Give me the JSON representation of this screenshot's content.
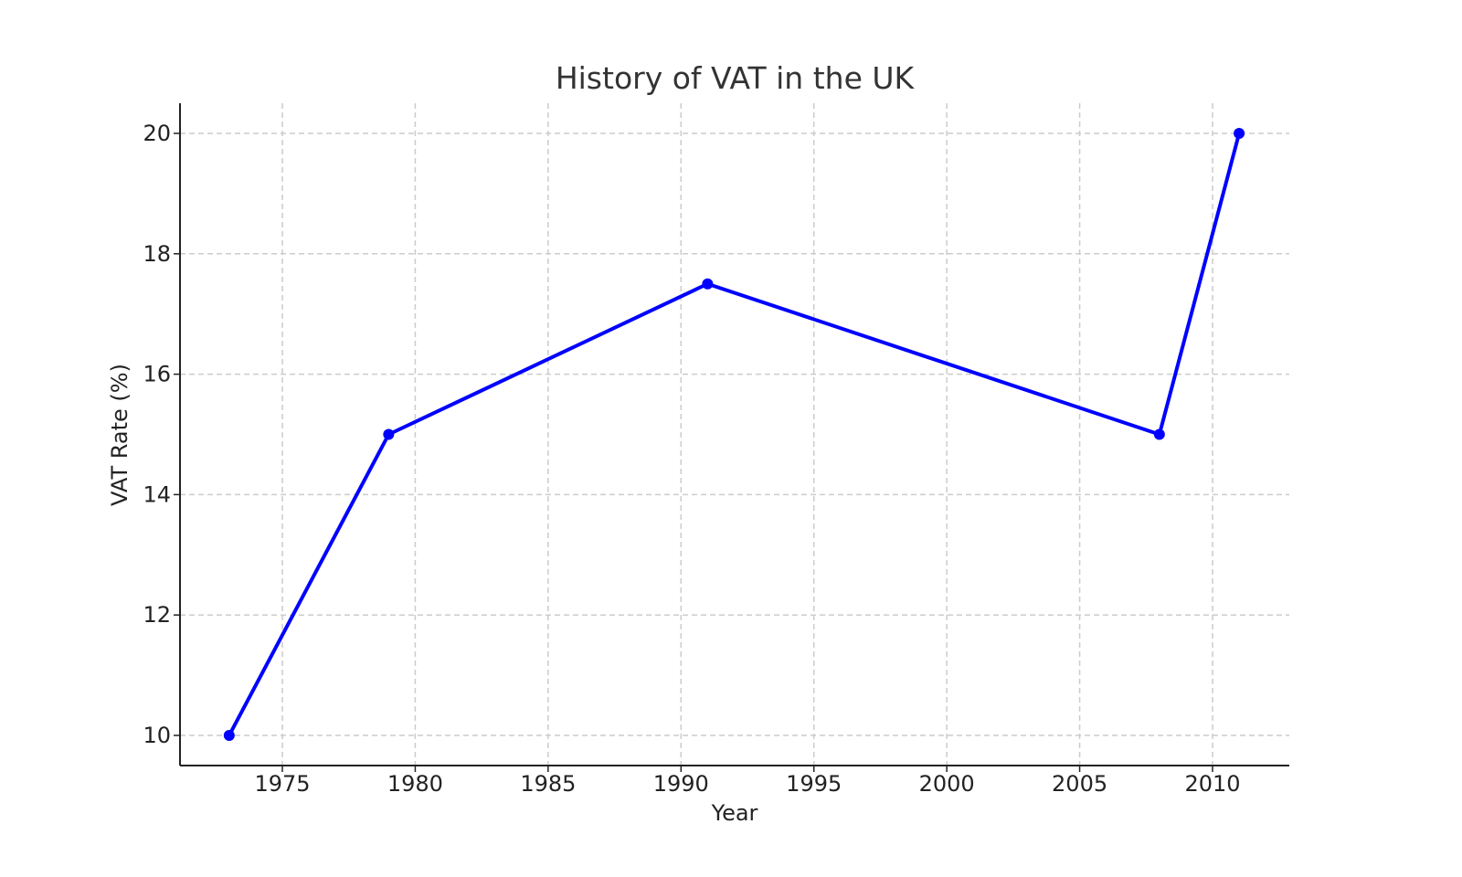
{
  "chart_data": {
    "type": "line",
    "title": "History of VAT in the UK",
    "xlabel": "Year",
    "ylabel": "VAT Rate (%)",
    "x": [
      1973,
      1979,
      1991,
      2008,
      2011
    ],
    "series": [
      {
        "name": "VAT Rate",
        "values": [
          10,
          15,
          17.5,
          15,
          20
        ],
        "color": "#0000ff",
        "marker": "circle"
      }
    ],
    "xticks": [
      1975,
      1980,
      1985,
      1990,
      1995,
      2000,
      2005,
      2010
    ],
    "yticks": [
      10,
      12,
      14,
      16,
      18,
      20
    ],
    "xlim": [
      1971.2,
      2012.9
    ],
    "ylim": [
      9.5,
      20.5
    ],
    "grid": true,
    "grid_style": "dashed",
    "legend": null
  }
}
